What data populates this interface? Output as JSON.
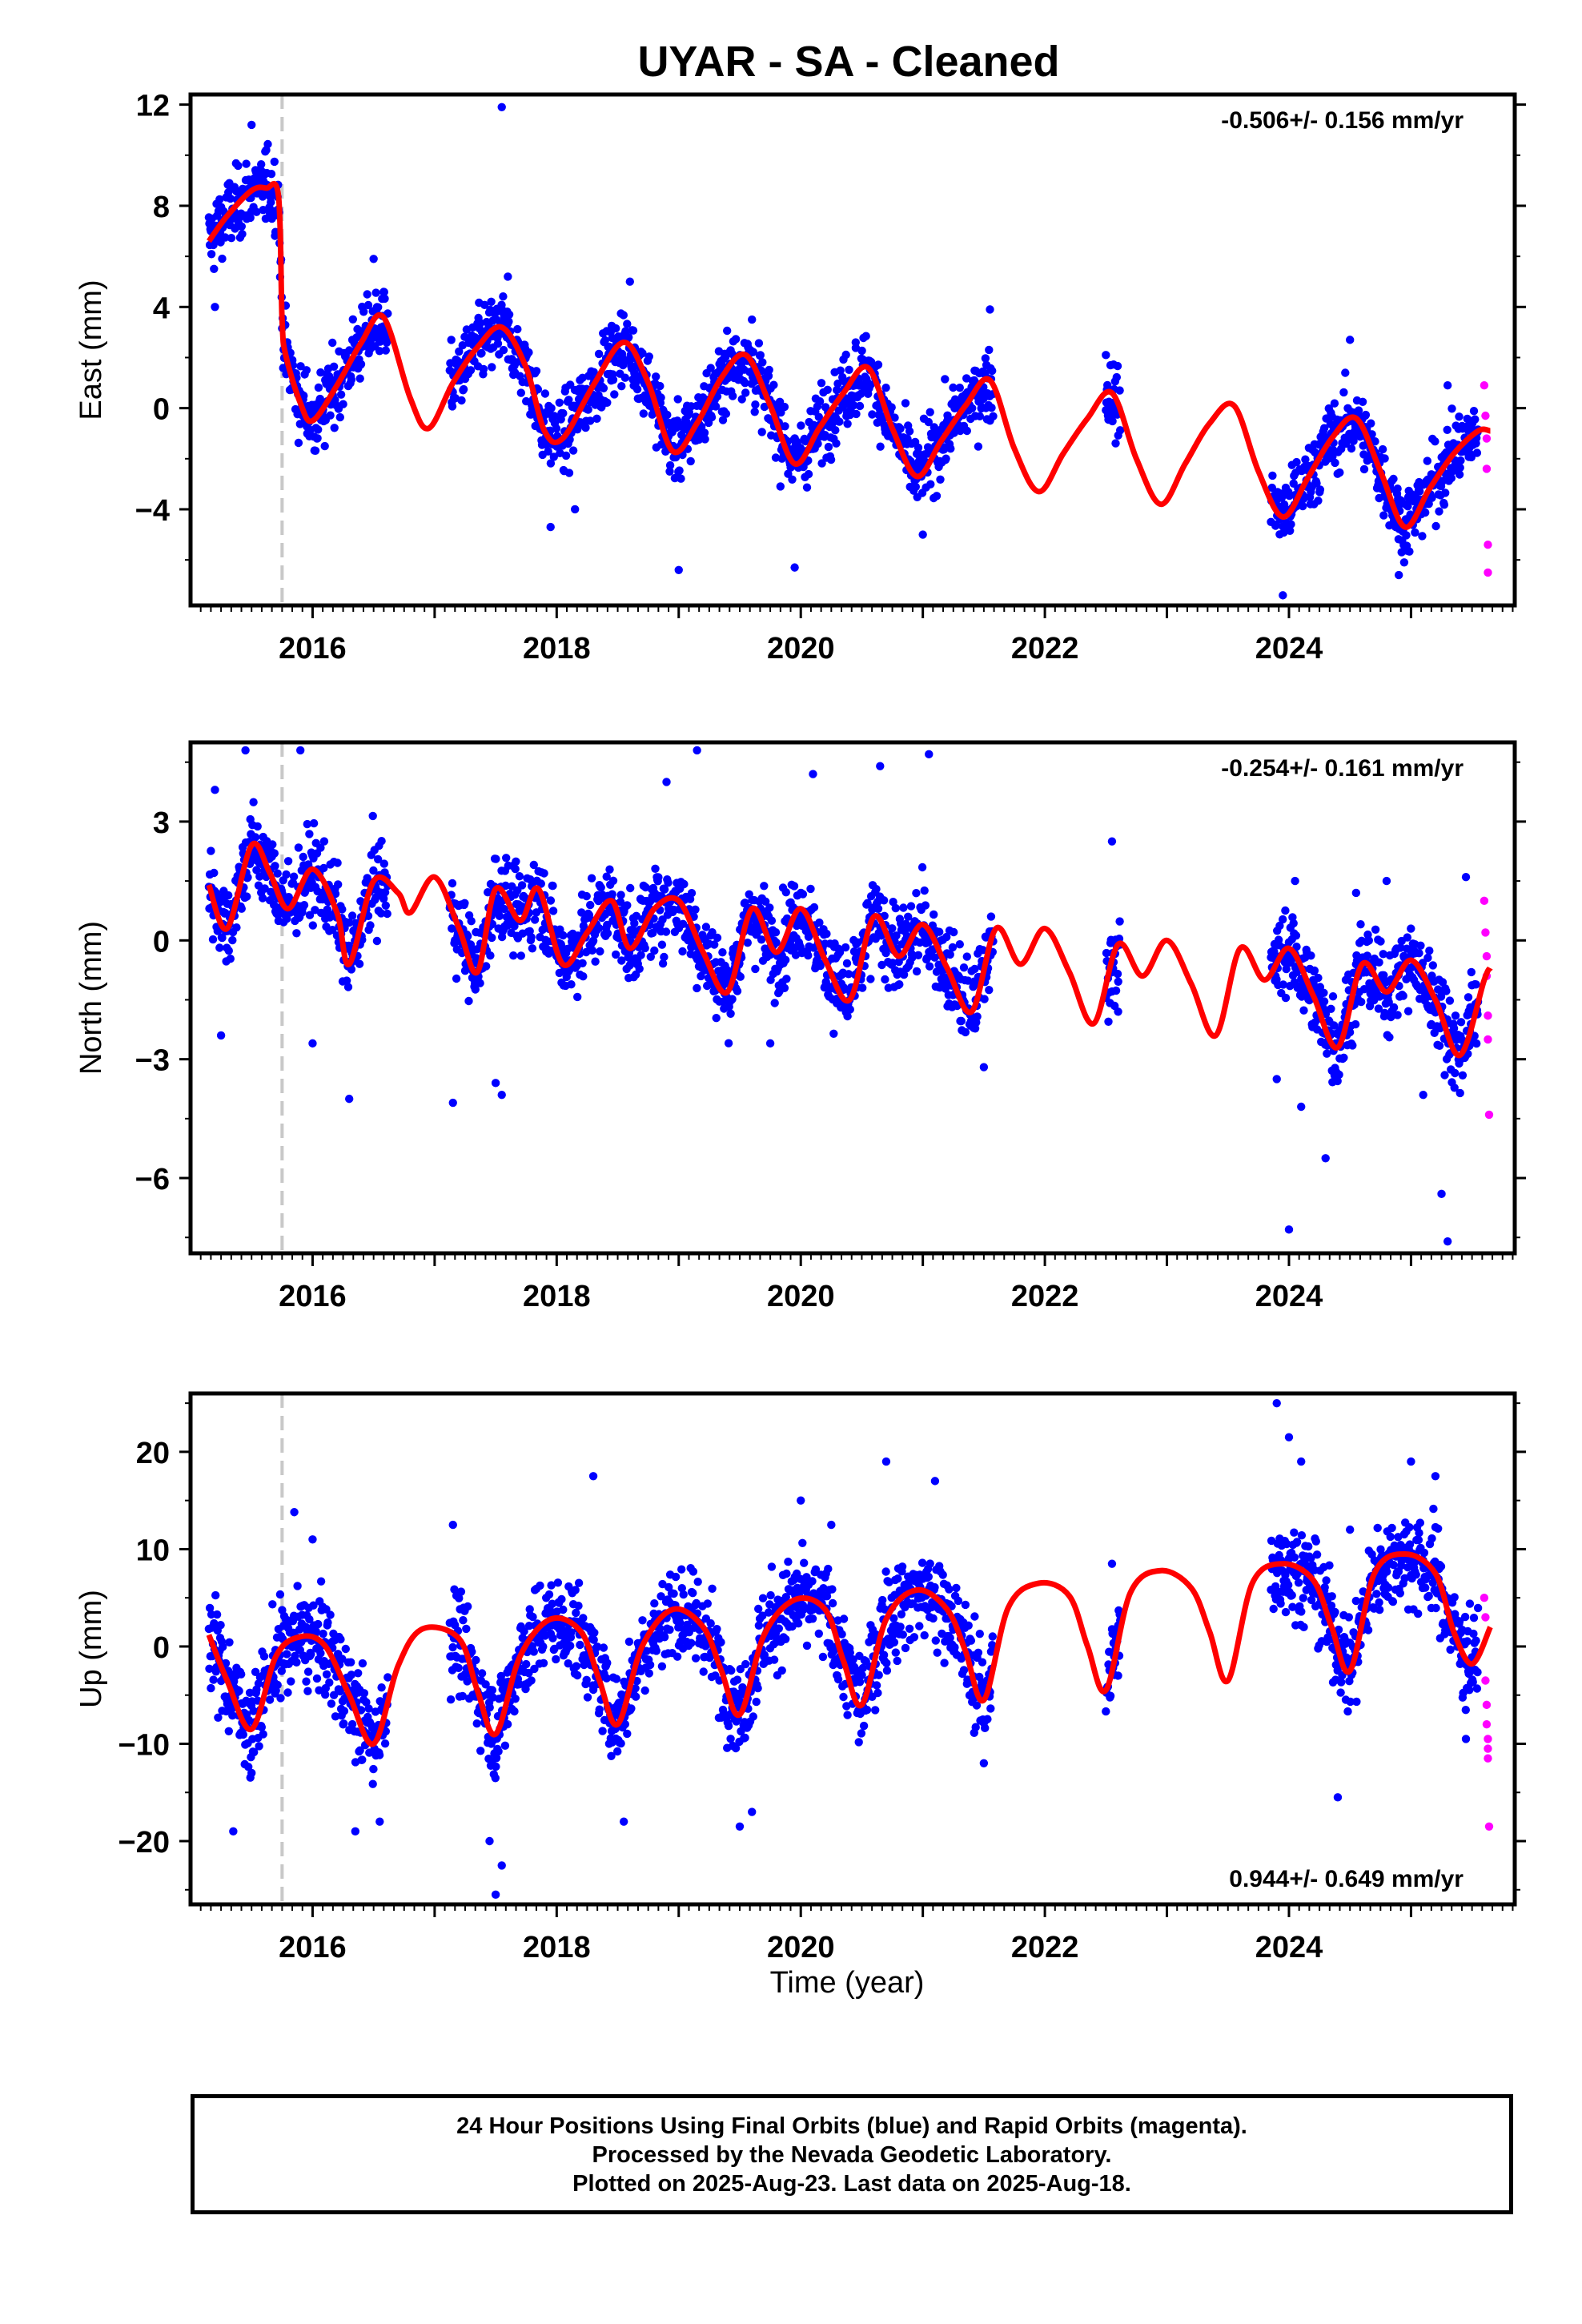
{
  "title": "UYAR  - SA - Cleaned",
  "xlabel": "Time (year)",
  "footer": {
    "line1": "24 Hour Positions Using Final Orbits (blue) and Rapid Orbits (magenta).",
    "line2": "Processed by the Nevada Geodetic Laboratory.",
    "line3": "Plotted on 2025-Aug-23. Last data on 2025-Aug-18."
  },
  "colors": {
    "final": "#0000ff",
    "rapid": "#ff00ff",
    "model": "#ff0000",
    "step": "#c8c8c8"
  },
  "chart_data": [
    {
      "type": "scatter",
      "panel": "east",
      "ylabel": "East (mm)",
      "rate_label": "-0.506+/- 0.156 mm/yr",
      "rate_position": "top-right",
      "xlim": [
        2015.0,
        2025.85
      ],
      "ylim": [
        -7.8,
        12.4
      ],
      "yticks": [
        -4,
        0,
        4,
        8,
        12
      ],
      "xticks": [
        2016,
        2018,
        2020,
        2022,
        2024
      ],
      "step_epoch": 2015.75,
      "model": {
        "x": [
          2015.15,
          2015.3,
          2015.5,
          2015.62,
          2015.72,
          2015.75,
          2015.78,
          2015.9,
          2016.0,
          2016.2,
          2016.4,
          2016.58,
          2016.8,
          2016.95,
          2017.15,
          2017.35,
          2017.55,
          2017.75,
          2017.9,
          2018.05,
          2018.3,
          2018.55,
          2018.75,
          2018.95,
          2019.15,
          2019.35,
          2019.55,
          2019.75,
          2019.95,
          2020.15,
          2020.35,
          2020.55,
          2020.75,
          2020.95,
          2021.15,
          2021.35,
          2021.55,
          2021.75,
          2021.95,
          2022.15,
          2022.35,
          2022.55,
          2022.75,
          2022.95,
          2023.15,
          2023.35,
          2023.55,
          2023.75,
          2023.95,
          2024.15,
          2024.35,
          2024.55,
          2024.75,
          2024.95,
          2025.15,
          2025.35,
          2025.55,
          2025.65
        ],
        "y": [
          6.6,
          7.6,
          8.6,
          8.7,
          8.4,
          3.5,
          2.1,
          0.2,
          -0.5,
          0.9,
          2.6,
          3.6,
          0.4,
          -0.8,
          1.0,
          2.4,
          3.2,
          1.6,
          -0.9,
          -1.2,
          0.9,
          2.6,
          1.0,
          -1.7,
          -0.6,
          1.2,
          2.1,
          0.1,
          -2.2,
          -0.8,
          0.6,
          1.6,
          -0.8,
          -2.7,
          -1.3,
          0.1,
          1.1,
          -1.6,
          -3.3,
          -1.8,
          -0.4,
          0.6,
          -2.0,
          -3.8,
          -2.2,
          -0.6,
          0.1,
          -2.5,
          -4.3,
          -2.8,
          -1.2,
          -0.4,
          -2.5,
          -4.7,
          -3.2,
          -1.8,
          -0.9,
          -0.9
        ]
      },
      "final_points": [
        {
          "x": 2015.2,
          "y": 4.0
        },
        {
          "x": 2015.35,
          "y": 7.5
        },
        {
          "x": 2015.5,
          "y": 11.2
        },
        {
          "x": 2015.62,
          "y": 10.2
        },
        {
          "x": 2015.95,
          "y": 1.5
        },
        {
          "x": 2016.1,
          "y": -1.5
        },
        {
          "x": 2016.5,
          "y": 5.9
        },
        {
          "x": 2017.55,
          "y": 11.9
        },
        {
          "x": 2017.6,
          "y": 5.2
        },
        {
          "x": 2017.95,
          "y": -4.7
        },
        {
          "x": 2018.15,
          "y": -4.0
        },
        {
          "x": 2018.6,
          "y": 5.0
        },
        {
          "x": 2019.0,
          "y": -6.4
        },
        {
          "x": 2019.6,
          "y": 3.5
        },
        {
          "x": 2019.95,
          "y": -6.3
        },
        {
          "x": 2020.45,
          "y": 2.6
        },
        {
          "x": 2021.0,
          "y": -5.0
        },
        {
          "x": 2021.55,
          "y": 3.9
        },
        {
          "x": 2022.5,
          "y": 2.1
        },
        {
          "x": 2022.55,
          "y": -0.5
        },
        {
          "x": 2023.95,
          "y": -7.4
        },
        {
          "x": 2024.5,
          "y": 2.7
        },
        {
          "x": 2024.9,
          "y": -6.6
        },
        {
          "x": 2025.3,
          "y": 0.9
        }
      ],
      "rapid_points": [
        {
          "x": 2025.6,
          "y": 0.9
        },
        {
          "x": 2025.61,
          "y": -0.3
        },
        {
          "x": 2025.62,
          "y": -1.2
        },
        {
          "x": 2025.62,
          "y": -2.4
        },
        {
          "x": 2025.63,
          "y": -5.4
        },
        {
          "x": 2025.63,
          "y": -6.5
        }
      ]
    },
    {
      "type": "scatter",
      "panel": "north",
      "ylabel": "North (mm)",
      "rate_label": "-0.254+/- 0.161 mm/yr",
      "rate_position": "top-right",
      "xlim": [
        2015.0,
        2025.85
      ],
      "ylim": [
        -7.9,
        5.0
      ],
      "yticks": [
        -6,
        -3,
        0,
        3
      ],
      "xticks": [
        2016,
        2018,
        2020,
        2022,
        2024
      ],
      "step_epoch": 2015.75,
      "model": {
        "x": [
          2015.15,
          2015.3,
          2015.5,
          2015.65,
          2015.8,
          2016.0,
          2016.2,
          2016.3,
          2016.5,
          2016.7,
          2016.8,
          2017.0,
          2017.2,
          2017.35,
          2017.5,
          2017.7,
          2017.85,
          2018.05,
          2018.25,
          2018.45,
          2018.6,
          2018.8,
          2019.0,
          2019.2,
          2019.4,
          2019.6,
          2019.8,
          2020.0,
          2020.2,
          2020.4,
          2020.6,
          2020.8,
          2021.0,
          2021.2,
          2021.4,
          2021.6,
          2021.8,
          2022.0,
          2022.2,
          2022.4,
          2022.6,
          2022.8,
          2023.0,
          2023.2,
          2023.4,
          2023.6,
          2023.8,
          2024.0,
          2024.2,
          2024.4,
          2024.6,
          2024.8,
          2025.0,
          2025.2,
          2025.4,
          2025.6,
          2025.65
        ],
        "y": [
          1.4,
          0.3,
          2.4,
          1.7,
          0.8,
          1.8,
          0.7,
          -0.6,
          1.5,
          1.2,
          0.7,
          1.6,
          0.3,
          -0.8,
          1.3,
          0.5,
          1.3,
          -0.6,
          0.2,
          1.0,
          -0.2,
          0.8,
          1.0,
          -0.3,
          -1.3,
          0.8,
          -0.3,
          0.8,
          -0.5,
          -1.5,
          0.6,
          -0.4,
          0.4,
          -0.7,
          -1.8,
          0.3,
          -0.6,
          0.3,
          -0.8,
          -2.1,
          -0.1,
          -0.9,
          0.0,
          -1.1,
          -2.4,
          -0.2,
          -1.0,
          -0.2,
          -1.4,
          -2.7,
          -0.6,
          -1.3,
          -0.5,
          -1.5,
          -2.9,
          -1.0,
          -0.7
        ]
      },
      "final_points": [
        {
          "x": 2015.2,
          "y": 3.8
        },
        {
          "x": 2015.25,
          "y": -2.4
        },
        {
          "x": 2015.45,
          "y": 4.8
        },
        {
          "x": 2015.9,
          "y": 4.8
        },
        {
          "x": 2016.0,
          "y": -2.6
        },
        {
          "x": 2016.3,
          "y": -4.0
        },
        {
          "x": 2017.15,
          "y": -4.1
        },
        {
          "x": 2017.5,
          "y": -3.6
        },
        {
          "x": 2017.55,
          "y": -3.9
        },
        {
          "x": 2018.9,
          "y": 4.0
        },
        {
          "x": 2019.15,
          "y": 4.8
        },
        {
          "x": 2019.75,
          "y": -2.6
        },
        {
          "x": 2020.1,
          "y": 4.2
        },
        {
          "x": 2020.65,
          "y": 4.4
        },
        {
          "x": 2021.05,
          "y": 4.7
        },
        {
          "x": 2021.5,
          "y": -3.2
        },
        {
          "x": 2022.55,
          "y": 2.5
        },
        {
          "x": 2022.6,
          "y": -1.8
        },
        {
          "x": 2023.9,
          "y": -3.5
        },
        {
          "x": 2024.1,
          "y": -4.2
        },
        {
          "x": 2024.3,
          "y": -5.5
        },
        {
          "x": 2024.05,
          "y": 1.5
        },
        {
          "x": 2024.55,
          "y": 1.2
        },
        {
          "x": 2024.8,
          "y": 1.5
        },
        {
          "x": 2025.1,
          "y": -3.9
        },
        {
          "x": 2025.3,
          "y": -7.6
        },
        {
          "x": 2025.25,
          "y": -6.4
        },
        {
          "x": 2024.0,
          "y": -7.3
        },
        {
          "x": 2025.45,
          "y": 1.6
        }
      ],
      "rapid_points": [
        {
          "x": 2025.6,
          "y": 1.0
        },
        {
          "x": 2025.61,
          "y": 0.2
        },
        {
          "x": 2025.62,
          "y": -0.4
        },
        {
          "x": 2025.62,
          "y": -0.9
        },
        {
          "x": 2025.63,
          "y": -1.9
        },
        {
          "x": 2025.63,
          "y": -2.5
        },
        {
          "x": 2025.64,
          "y": -4.4
        }
      ]
    },
    {
      "type": "scatter",
      "panel": "up",
      "ylabel": "Up (mm)",
      "rate_label": "0.944+/- 0.649 mm/yr",
      "rate_position": "bottom-right",
      "xlim": [
        2015.0,
        2025.85
      ],
      "ylim": [
        -26.5,
        26.0
      ],
      "yticks": [
        -20,
        -10,
        0,
        10,
        20
      ],
      "xticks": [
        2016,
        2018,
        2020,
        2022,
        2024
      ],
      "step_epoch": 2015.75,
      "model": {
        "x": [
          2015.15,
          2015.3,
          2015.5,
          2015.7,
          2015.9,
          2016.1,
          2016.3,
          2016.5,
          2016.7,
          2016.9,
          2017.2,
          2017.35,
          2017.5,
          2017.7,
          2017.95,
          2018.2,
          2018.35,
          2018.5,
          2018.7,
          2018.95,
          2019.2,
          2019.35,
          2019.5,
          2019.7,
          2019.95,
          2020.2,
          2020.35,
          2020.5,
          2020.7,
          2020.95,
          2021.2,
          2021.35,
          2021.5,
          2021.7,
          2021.95,
          2022.2,
          2022.35,
          2022.5,
          2022.7,
          2022.95,
          2023.2,
          2023.35,
          2023.5,
          2023.7,
          2023.95,
          2024.2,
          2024.35,
          2024.5,
          2024.7,
          2024.95,
          2025.2,
          2025.35,
          2025.5,
          2025.65
        ],
        "y": [
          1.2,
          -3.5,
          -8.5,
          -1.0,
          1.0,
          0.1,
          -5.0,
          -10.0,
          -2.0,
          1.8,
          0.8,
          -4.5,
          -9.0,
          -1.0,
          2.8,
          1.5,
          -3.5,
          -8.0,
          0.0,
          3.8,
          2.0,
          -2.5,
          -7.0,
          1.2,
          4.8,
          3.8,
          -1.5,
          -6.0,
          2.8,
          5.8,
          3.8,
          -0.5,
          -5.5,
          4.0,
          6.5,
          5.2,
          0.0,
          -4.5,
          5.5,
          7.8,
          6.0,
          1.5,
          -3.5,
          6.5,
          8.5,
          6.8,
          2.0,
          -2.5,
          7.5,
          9.5,
          7.5,
          1.5,
          -1.8,
          2.0
        ]
      },
      "final_points": [
        {
          "x": 2015.35,
          "y": -19.0
        },
        {
          "x": 2015.5,
          "y": -13.0
        },
        {
          "x": 2015.85,
          "y": 13.8
        },
        {
          "x": 2016.0,
          "y": 11.0
        },
        {
          "x": 2016.35,
          "y": -19.0
        },
        {
          "x": 2016.55,
          "y": -18.0
        },
        {
          "x": 2017.15,
          "y": 12.5
        },
        {
          "x": 2017.5,
          "y": -25.5
        },
        {
          "x": 2017.55,
          "y": -22.5
        },
        {
          "x": 2017.45,
          "y": -20.0
        },
        {
          "x": 2018.3,
          "y": 17.5
        },
        {
          "x": 2018.55,
          "y": -18.0
        },
        {
          "x": 2019.5,
          "y": -18.5
        },
        {
          "x": 2019.6,
          "y": -17.0
        },
        {
          "x": 2020.0,
          "y": 15.0
        },
        {
          "x": 2020.25,
          "y": 12.5
        },
        {
          "x": 2020.7,
          "y": 19.0
        },
        {
          "x": 2021.1,
          "y": 17.0
        },
        {
          "x": 2021.5,
          "y": -12.0
        },
        {
          "x": 2022.55,
          "y": 8.5
        },
        {
          "x": 2022.6,
          "y": -3.0
        },
        {
          "x": 2023.9,
          "y": 25.0
        },
        {
          "x": 2024.0,
          "y": 21.5
        },
        {
          "x": 2024.1,
          "y": 19.0
        },
        {
          "x": 2024.4,
          "y": -15.5
        },
        {
          "x": 2024.5,
          "y": 12.0
        },
        {
          "x": 2025.0,
          "y": 19.0
        },
        {
          "x": 2025.2,
          "y": 17.5
        },
        {
          "x": 2025.45,
          "y": -9.5
        }
      ],
      "rapid_points": [
        {
          "x": 2025.6,
          "y": 5.0
        },
        {
          "x": 2025.61,
          "y": 3.0
        },
        {
          "x": 2025.61,
          "y": -3.5
        },
        {
          "x": 2025.62,
          "y": -6.0
        },
        {
          "x": 2025.62,
          "y": -8.0
        },
        {
          "x": 2025.63,
          "y": -9.5
        },
        {
          "x": 2025.63,
          "y": -10.5
        },
        {
          "x": 2025.63,
          "y": -11.5
        },
        {
          "x": 2025.64,
          "y": -18.5
        }
      ]
    }
  ]
}
